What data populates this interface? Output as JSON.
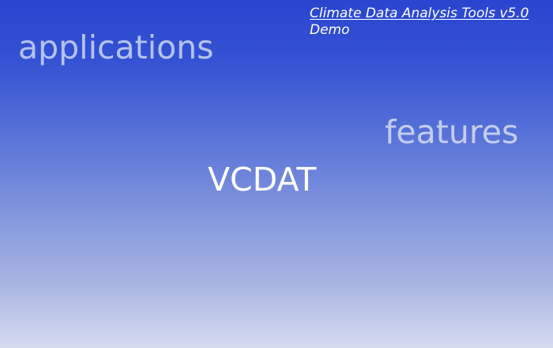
{
  "header": {
    "title": "Climate Data Analysis Tools v5.0",
    "subtitle": "Demo"
  },
  "words": {
    "applications": "applications",
    "features": "features",
    "vcdat": "VCDAT"
  },
  "colors": {
    "background_top": "#2a45cf",
    "background_bottom": "#d6dcef",
    "text_primary": "#ffffff",
    "text_faded": "#b4c3ee"
  }
}
